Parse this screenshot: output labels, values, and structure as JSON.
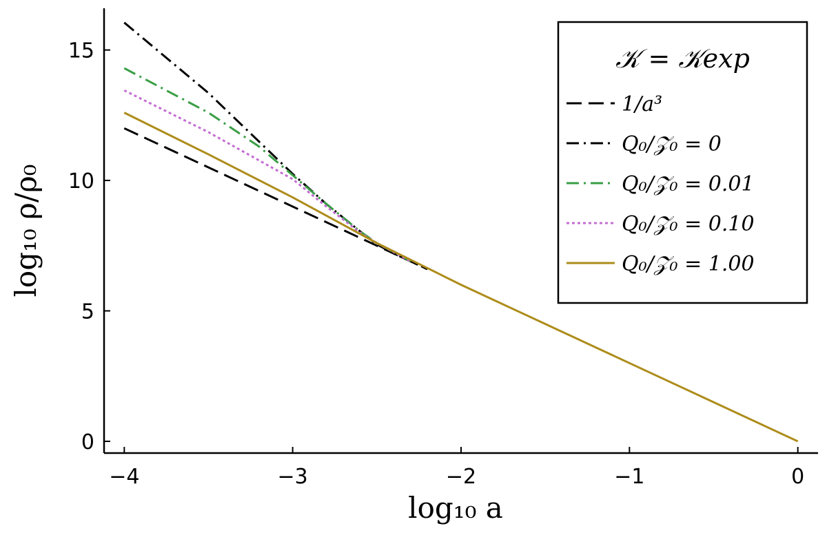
{
  "chart_data": {
    "type": "line",
    "xlabel": "log₁₀ a",
    "ylabel": "log₁₀ ρ/ρ₀",
    "xlim": [
      -4.12,
      0.12
    ],
    "ylim": [
      -0.45,
      16.6
    ],
    "xticks": [
      -4,
      -3,
      -2,
      -1,
      0
    ],
    "xtick_labels": [
      "−4",
      "−3",
      "−2",
      "−1",
      "0"
    ],
    "yticks": [
      0,
      5,
      10,
      15
    ],
    "ytick_labels": [
      "0",
      "5",
      "10",
      "15"
    ],
    "grid": false,
    "legend_placement": "top-right",
    "legend_title": "𝒦 = 𝒦exp",
    "series": [
      {
        "name": "1/a³",
        "color": "#000000",
        "dash": "dash",
        "x": [
          -4,
          -2.2
        ],
        "y": [
          12.0,
          6.6
        ]
      },
      {
        "name": "Q₀/𝒵₀ = 0",
        "color": "#000000",
        "dash": "dashdot",
        "x": [
          -4,
          -3.5,
          -3.0,
          -2.8,
          -2.6,
          -2.5,
          -2.4,
          -2.3,
          -2.2
        ],
        "y": [
          16.05,
          13.35,
          10.25,
          9.1,
          8.05,
          7.55,
          7.2,
          6.9,
          6.6
        ]
      },
      {
        "name": "Q₀/𝒵₀ = 0.01",
        "color": "#3a9e45",
        "dash": "dashdot",
        "x": [
          -4,
          -3.5,
          -3.2,
          -3.0,
          -2.8,
          -2.6,
          -2.5,
          -2.3
        ],
        "y": [
          14.3,
          12.6,
          11.3,
          10.2,
          9.1,
          8.05,
          7.6,
          6.9
        ]
      },
      {
        "name": "Q₀/𝒵₀ = 0.10",
        "color": "#c36ed2",
        "dash": "dot",
        "x": [
          -4,
          -3.5,
          -3.0,
          -2.8,
          -2.6,
          -2.5,
          -2.3
        ],
        "y": [
          13.45,
          11.85,
          10.05,
          9.0,
          8.0,
          7.6,
          6.9
        ]
      },
      {
        "name": "Q₀/𝒵₀ = 1.00",
        "color": "#ad8c1a",
        "dash": "solid",
        "x": [
          -4,
          -3.5,
          -3.0,
          -2.5,
          -2.0,
          -1.5,
          -1.0,
          -0.5,
          0
        ],
        "y": [
          12.6,
          11.0,
          9.35,
          7.6,
          6.0,
          4.5,
          3.0,
          1.5,
          0.0
        ]
      }
    ]
  }
}
